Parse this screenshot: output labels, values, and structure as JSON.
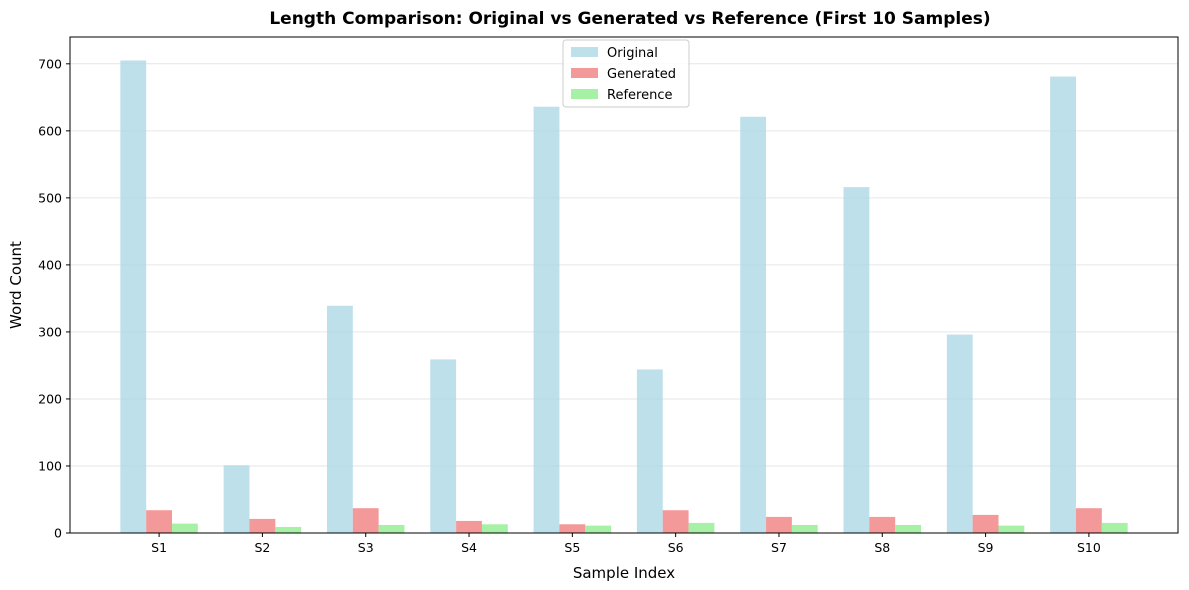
{
  "chart_data": {
    "type": "bar",
    "title": "Length Comparison: Original vs Generated vs Reference (First 10 Samples)",
    "xlabel": "Sample Index",
    "ylabel": "Word Count",
    "categories": [
      "S1",
      "S2",
      "S3",
      "S4",
      "S5",
      "S6",
      "S7",
      "S8",
      "S9",
      "S10"
    ],
    "ylim": [
      0,
      740
    ],
    "yticks": [
      0,
      100,
      200,
      300,
      400,
      500,
      600,
      700
    ],
    "grid": true,
    "grid_axis": "y",
    "legend_position": "top-center",
    "series": [
      {
        "name": "Original",
        "color": "#add8e6",
        "values": [
          705,
          101,
          339,
          259,
          636,
          244,
          621,
          516,
          296,
          681
        ]
      },
      {
        "name": "Generated",
        "color": "#f08080",
        "values": [
          34,
          21,
          37,
          18,
          13,
          34,
          24,
          24,
          27,
          37
        ]
      },
      {
        "name": "Reference",
        "color": "#90ee90",
        "values": [
          14,
          9,
          12,
          13,
          11,
          15,
          12,
          12,
          11,
          15
        ]
      }
    ]
  }
}
